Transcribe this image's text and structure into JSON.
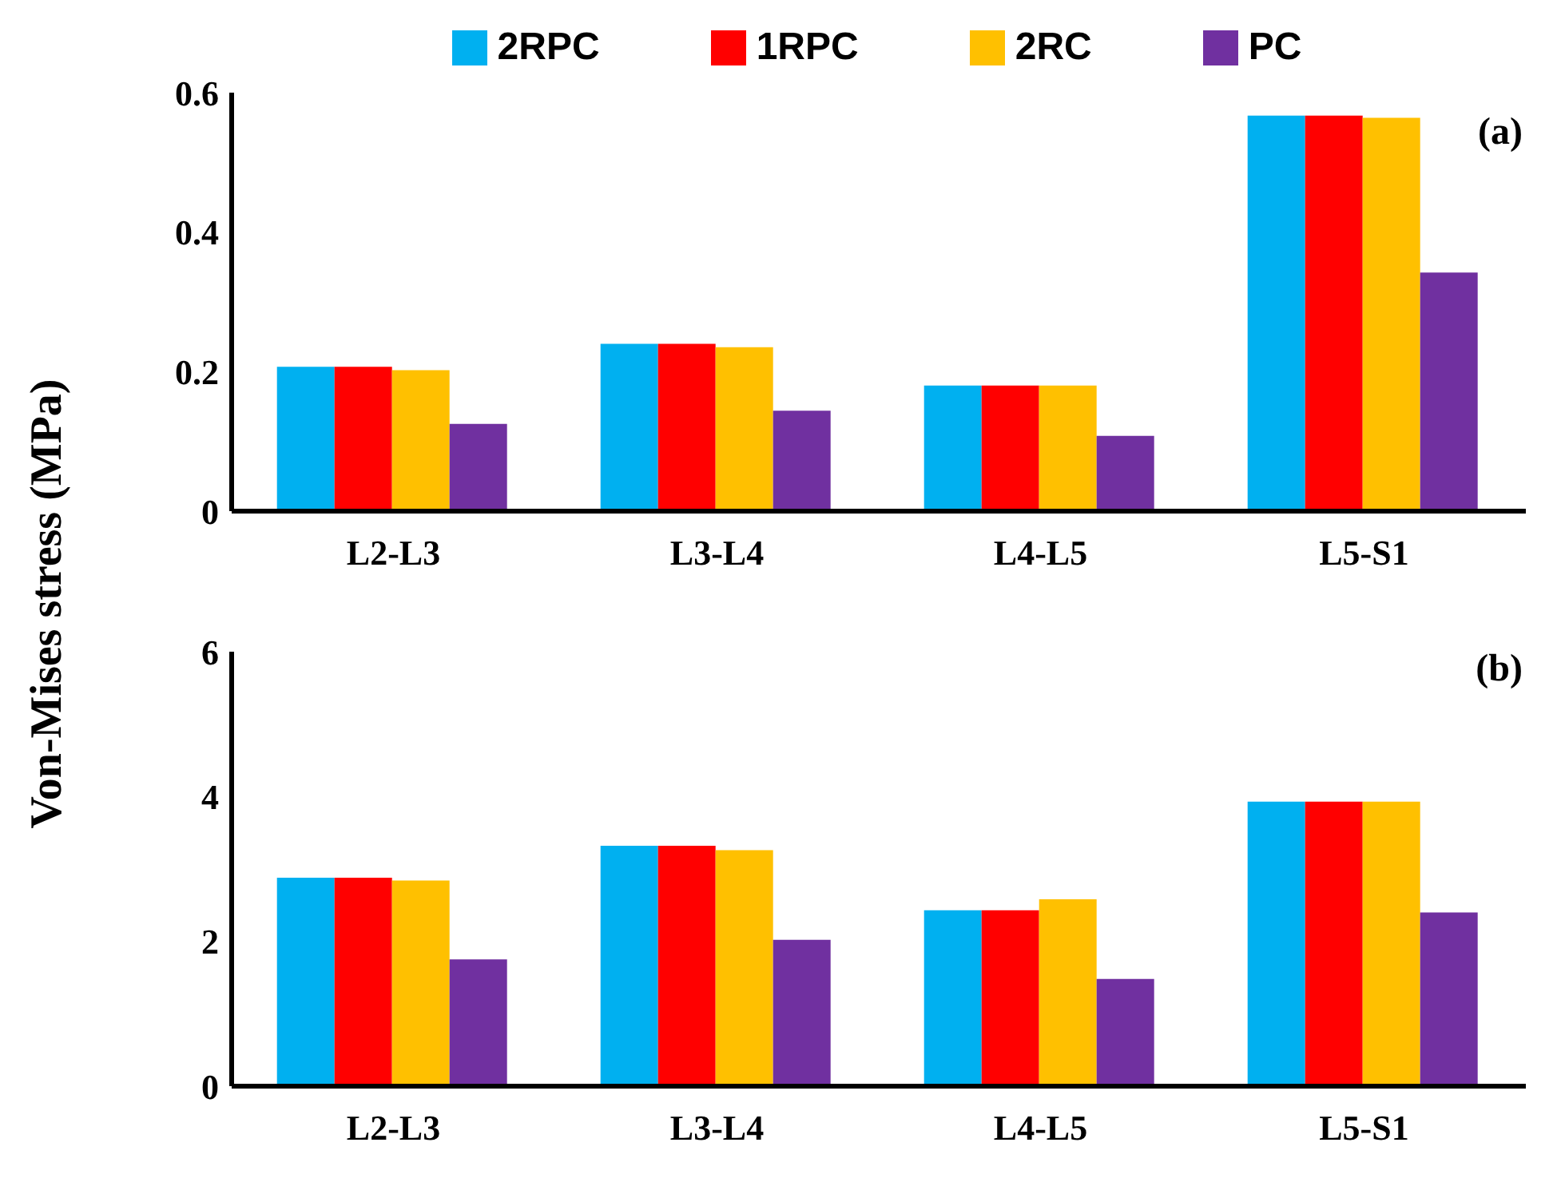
{
  "chart_data": [
    {
      "type": "bar",
      "ylabel": "Von-Mises stress (MPa)",
      "annotations": [
        "(a)"
      ],
      "categories": [
        "L2-L3",
        "L3-L4",
        "L4-L5",
        "L5-S1"
      ],
      "legend": "top",
      "grid": false,
      "ylim": [
        0,
        0.6
      ],
      "yticks": [
        {
          "value": 0,
          "label": "0"
        },
        0.2,
        0.4,
        0.6
      ],
      "series": [
        {
          "name": "2RPC",
          "color": "#00b0f0",
          "values": [
            0.207,
            0.24,
            0.18,
            0.567
          ]
        },
        {
          "name": "1RPC",
          "color": "#ff0000",
          "values": [
            0.207,
            0.24,
            0.18,
            0.567
          ]
        },
        {
          "name": "2RC",
          "color": "#ffc000",
          "values": [
            0.202,
            0.235,
            0.18,
            0.564
          ]
        },
        {
          "name": "PC",
          "color": "#7030a0",
          "values": [
            0.125,
            0.144,
            0.108,
            0.342
          ]
        }
      ]
    },
    {
      "type": "bar",
      "annotations": [
        "(b)"
      ],
      "categories": [
        "L2-L3",
        "L3-L4",
        "L4-L5",
        "L5-S1"
      ],
      "grid": false,
      "ylim": [
        0,
        6
      ],
      "yticks": [
        0,
        2,
        4,
        6
      ],
      "series": [
        {
          "color": "#00b0f0",
          "values": [
            2.88,
            3.32,
            2.43,
            3.93
          ]
        },
        {
          "color": "#ff0000",
          "values": [
            2.88,
            3.32,
            2.43,
            3.93
          ]
        },
        {
          "color": "#ffc000",
          "values": [
            2.84,
            3.26,
            2.58,
            3.93
          ]
        },
        {
          "color": "#7030a0",
          "values": [
            1.75,
            2.02,
            1.48,
            2.4
          ]
        }
      ]
    }
  ]
}
